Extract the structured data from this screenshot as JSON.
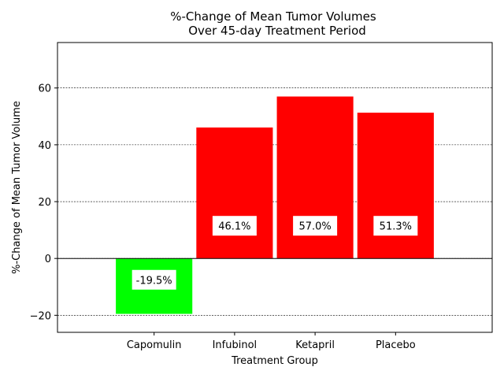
{
  "chart_data": {
    "type": "bar",
    "title": [
      "%-Change of Mean Tumor Volumes",
      "Over 45-day Treatment Period"
    ],
    "xlabel": "Treatment Group",
    "ylabel": "%-Change of Mean Tumor Volume",
    "categories": [
      "Capomulin",
      "Infubinol",
      "Ketapril",
      "Placebo"
    ],
    "values": [
      -19.5,
      46.1,
      57.0,
      51.3
    ],
    "data_labels": [
      "-19.5%",
      "46.1%",
      "57.0%",
      "51.3%"
    ],
    "colors": [
      "#00ff00",
      "#ff0000",
      "#ff0000",
      "#ff0000"
    ],
    "ylim": [
      -26,
      76
    ],
    "yticks": [
      -20,
      0,
      20,
      40,
      60
    ],
    "ytick_labels": [
      "−20",
      "0",
      "20",
      "40",
      "60"
    ],
    "label_y": [
      -7.5,
      11.5,
      11.5,
      11.5
    ],
    "grid": "horizontal dashed",
    "legend": "none"
  }
}
